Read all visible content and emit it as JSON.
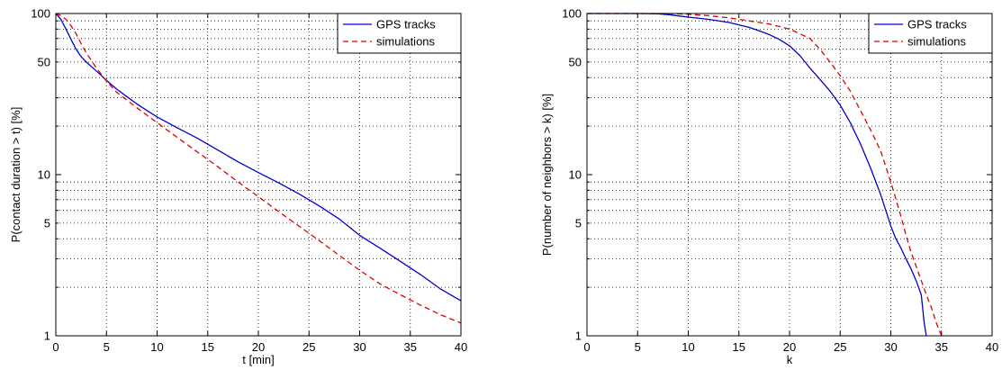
{
  "chart_data": [
    {
      "type": "line",
      "xlabel": "t [min]",
      "ylabel": "P(contact duration > t) [%]",
      "xlim": [
        0,
        40
      ],
      "ylim": [
        1,
        100
      ],
      "yscale": "log",
      "grid": true,
      "legend_placement": "top-right",
      "x_ticks": [
        "0",
        "5",
        "10",
        "15",
        "20",
        "25",
        "30",
        "35",
        "40"
      ],
      "y_ticks": [
        "1",
        "5",
        "10",
        "50",
        "100"
      ],
      "series": [
        {
          "name": "GPS tracks",
          "color": "#0000cc",
          "style": "solid",
          "x": [
            0,
            0.5,
            1,
            1.5,
            2,
            2.5,
            3,
            4,
            5,
            6,
            7,
            8,
            9,
            10,
            12,
            14,
            16,
            18,
            20,
            22,
            24,
            26,
            28,
            30,
            32,
            34,
            36,
            38,
            40
          ],
          "y": [
            100,
            92,
            80,
            69,
            60,
            54,
            50,
            44,
            38.5,
            34,
            30.5,
            27.5,
            25,
            22.8,
            19.5,
            16.8,
            14.2,
            12,
            10.3,
            8.9,
            7.6,
            6.4,
            5.3,
            4.2,
            3.5,
            2.9,
            2.4,
            1.95,
            1.65
          ]
        },
        {
          "name": "simulations",
          "color": "#dd0000",
          "style": "dashed",
          "x": [
            0,
            0.5,
            1,
            1.5,
            2,
            2.5,
            3,
            4,
            5,
            6,
            8,
            10,
            12,
            14,
            16,
            18,
            20,
            22,
            24,
            26,
            28,
            30,
            32,
            34,
            36,
            38,
            40
          ],
          "y": [
            100,
            97,
            92,
            84,
            75,
            65,
            57,
            46,
            38,
            32.5,
            26,
            21,
            17,
            13.8,
            11.2,
            9,
            7.3,
            5.9,
            4.8,
            3.9,
            3.15,
            2.55,
            2.1,
            1.8,
            1.55,
            1.35,
            1.2
          ]
        }
      ]
    },
    {
      "type": "line",
      "xlabel": "k",
      "ylabel": "P(number of neighbors > k) [%]",
      "xlim": [
        0,
        40
      ],
      "ylim": [
        1,
        100
      ],
      "yscale": "log",
      "grid": true,
      "legend_placement": "top-right",
      "x_ticks": [
        "0",
        "5",
        "10",
        "15",
        "20",
        "25",
        "30",
        "35",
        "40"
      ],
      "y_ticks": [
        "1",
        "5",
        "10",
        "50",
        "100"
      ],
      "series": [
        {
          "name": "GPS tracks",
          "color": "#0000cc",
          "style": "solid",
          "x": [
            0,
            5,
            7,
            8,
            10,
            12,
            14,
            16,
            17,
            18,
            19,
            20,
            21,
            22,
            23,
            24,
            25,
            26,
            27,
            28,
            29,
            29.5,
            30,
            30.5,
            31,
            31.5,
            32,
            32.5,
            33,
            33.3,
            33.5
          ],
          "y": [
            100,
            100,
            99.5,
            98.5,
            95,
            92,
            88,
            82,
            78,
            74,
            69,
            63,
            55,
            46,
            39,
            33,
            27,
            21,
            15.5,
            11,
            7.5,
            6,
            4.8,
            4,
            3.5,
            3,
            2.6,
            2.2,
            1.8,
            1.2,
            1
          ]
        },
        {
          "name": "simulations",
          "color": "#dd0000",
          "style": "dashed",
          "x": [
            0,
            8,
            10,
            12,
            14,
            16,
            18,
            20,
            21,
            22,
            23,
            24,
            25,
            26,
            27,
            28,
            29,
            30,
            31,
            31.5,
            32,
            32.5,
            33,
            33.5,
            34,
            34.5,
            35
          ],
          "y": [
            100,
            100,
            99,
            97,
            94,
            90,
            86,
            80,
            75,
            70,
            60,
            50,
            41,
            33,
            25,
            19,
            14,
            9,
            5.5,
            4.2,
            3.3,
            2.7,
            2.2,
            1.8,
            1.5,
            1.2,
            1
          ]
        }
      ]
    }
  ]
}
